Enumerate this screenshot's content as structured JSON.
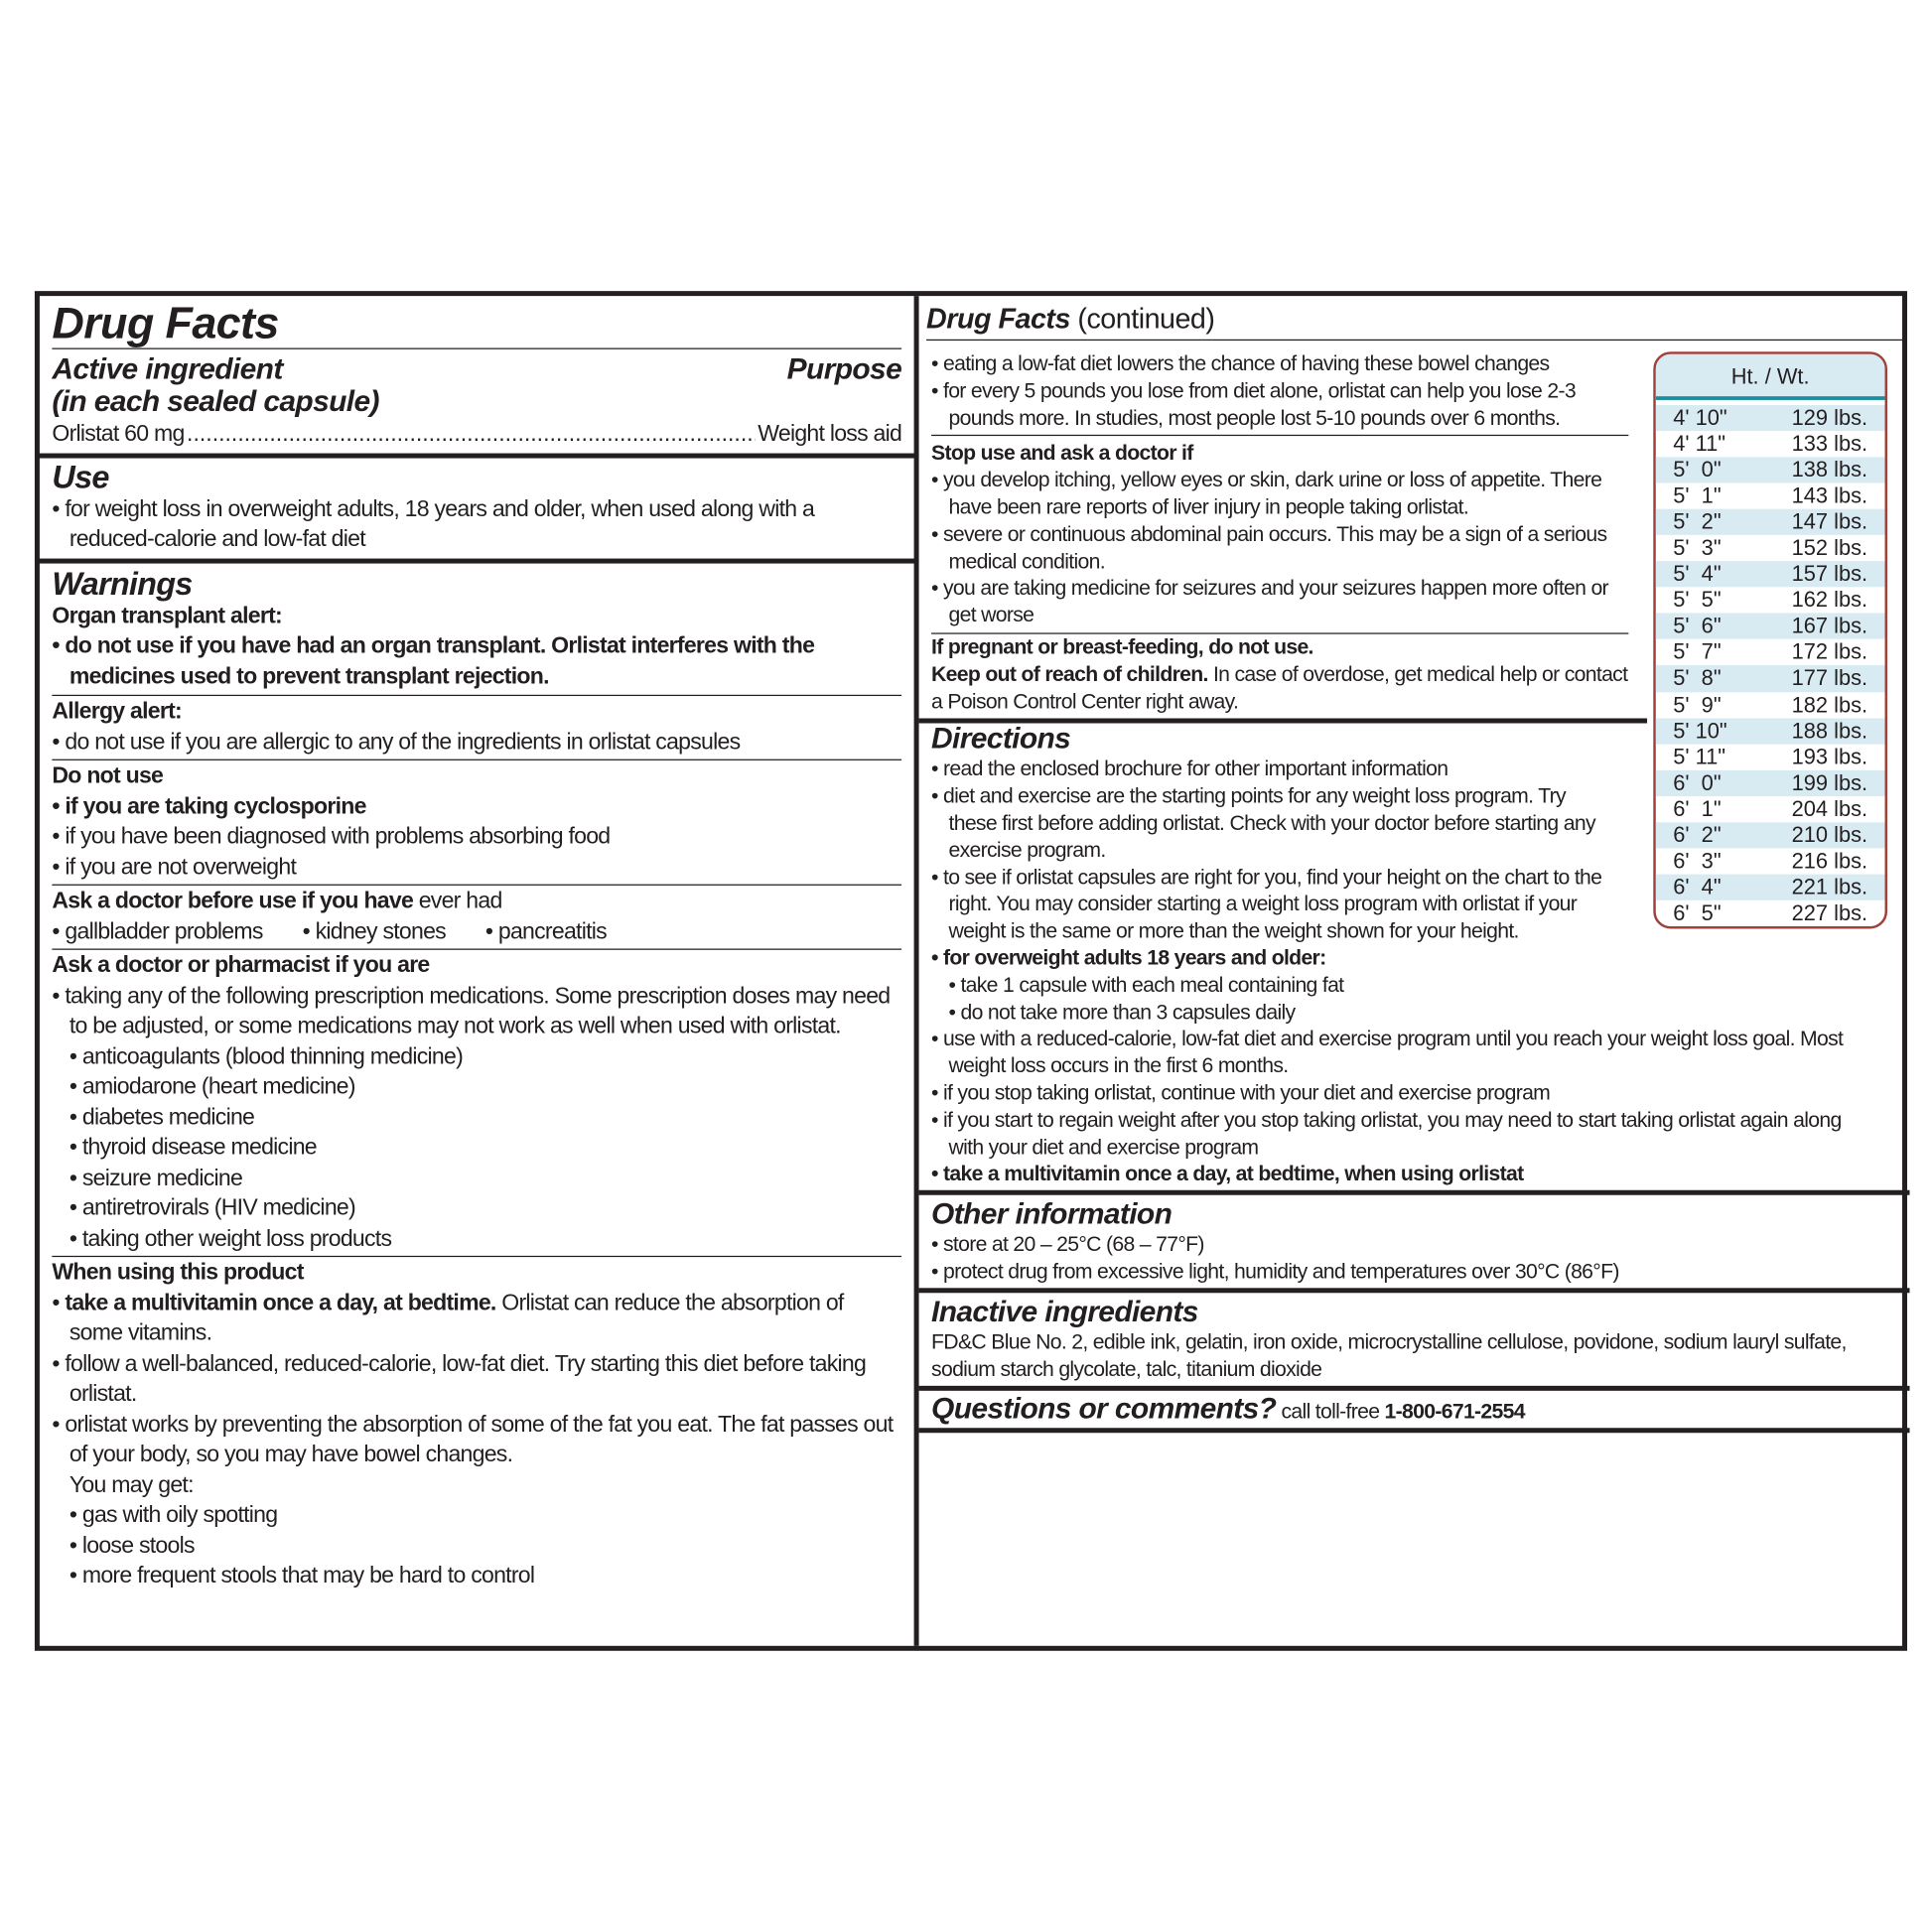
{
  "left": {
    "title": "Drug Facts",
    "active_heading": "Active ingredient",
    "active_sub": "(in each sealed capsule)",
    "purpose_heading": "Purpose",
    "ingredient": "Orlistat 60 mg",
    "purpose": "Weight loss aid",
    "use_heading": "Use",
    "use_items": [
      "for weight loss in overweight adults, 18 years and older, when used along with a reduced-calorie and low-fat diet"
    ],
    "warnings_heading": "Warnings",
    "organ_heading": "Organ transplant alert:",
    "organ_items": [
      "do not use if you have had an organ transplant. Orlistat interferes with the medicines used to prevent transplant rejection."
    ],
    "allergy_heading": "Allergy alert:",
    "allergy_items": [
      "do not use if you are allergic to any of the ingredients in orlistat capsules"
    ],
    "donot_heading": "Do not use",
    "donot_items": [
      "if you are taking cyclosporine",
      "if you have been diagnosed with problems absorbing food",
      "if you are not overweight"
    ],
    "askdoc_heading": "Ask a doctor before use if you have",
    "askdoc_heading_rest": " ever had",
    "askdoc_items": [
      "gallbladder problems",
      "kidney stones",
      "pancreatitis"
    ],
    "askpharm_heading": "Ask a doctor or pharmacist if you are",
    "askpharm_item": "taking any of the following prescription medications. Some prescription doses may need to be adjusted, or some medications may not work as well when used with orlistat.",
    "askpharm_sub": [
      "anticoagulants (blood thinning medicine)",
      "amiodarone (heart medicine)",
      "diabetes medicine",
      "thyroid disease medicine",
      "seizure medicine",
      "antiretrovirals (HIV medicine)",
      "taking other weight loss products"
    ],
    "when_heading": "When using this product",
    "when_1_bold": "take a multivitamin once a day, at bedtime.",
    "when_1_rest": " Orlistat can reduce the absorption of some vitamins.",
    "when_2": "follow a well-balanced, reduced-calorie, low-fat diet. Try starting this diet before taking orlistat.",
    "when_3": "orlistat works by preventing the absorption of some of the fat you eat. The fat passes out of your body, so you may have bowel changes.",
    "when_3_may": "You may get:",
    "when_sub": [
      "gas with oily spotting",
      "loose stools",
      "more frequent stools that may be hard to control"
    ]
  },
  "right": {
    "title": "Drug Facts",
    "title_rest": " (continued)",
    "top_items": [
      "eating a low-fat diet lowers the chance of having these bowel changes",
      "for every 5 pounds you lose from diet alone, orlistat can help you lose 2-3 pounds more. In studies, most people lost 5-10 pounds over 6 months."
    ],
    "stop_heading": "Stop use and ask a doctor if",
    "stop_items": [
      "you develop itching, yellow eyes or skin, dark urine or loss of appetite. There have been rare reports of liver injury in people taking orlistat.",
      "severe or continuous abdominal pain occurs. This may be a sign of a serious medical condition.",
      "you are taking medicine for seizures and your seizures happen more often or get worse"
    ],
    "pregnant": "If pregnant or breast-feeding, do not use.",
    "keep_bold": "Keep out of reach of children.",
    "keep_rest": " In case of overdose, get medical help or contact a Poison Control Center right away.",
    "directions_heading": "Directions",
    "dir_1": "read the enclosed brochure for other important information",
    "dir_2": "diet and exercise are the starting points for any weight loss program. Try these first before adding orlistat. Check with your doctor before starting any exercise program.",
    "dir_3": "to see if orlistat capsules are right for you, find your height on the chart to the right. You may consider starting a weight loss program with orlistat if your weight is the same or more than the weight shown for your height.",
    "dir_4": "for overweight adults 18 years and older:",
    "dir_4_sub": [
      "take 1 capsule with each meal containing fat",
      "do not take more than 3 capsules daily"
    ],
    "dir_5": "use with a reduced-calorie, low-fat diet and exercise program until you reach your weight loss goal. Most weight loss occurs in the first 6 months.",
    "dir_6": "if you stop taking orlistat, continue with your diet and exercise program",
    "dir_7": "if you start to regain weight after you stop taking orlistat, you may need to start taking orlistat again along with your diet and exercise program",
    "dir_8": "take a multivitamin once a day, at bedtime, when using orlistat",
    "other_heading": "Other information",
    "other_items": [
      "store at 20 – 25°C (68 – 77°F)",
      "protect drug from excessive light, humidity and temperatures over 30°C (86°F)"
    ],
    "inactive_heading": "Inactive ingredients",
    "inactive_text": "FD&C Blue No. 2, edible ink, gelatin, iron oxide, microcrystalline cellulose, povidone, sodium lauryl sulfate, sodium starch glycolate, talc, titanium dioxide",
    "questions_heading": "Questions or comments?",
    "questions_rest": " call toll-free ",
    "phone": "1-800-671-2554"
  },
  "chart": {
    "header": "Ht. / Wt.",
    "rows": [
      [
        "4' 10\"",
        "129 lbs."
      ],
      [
        "4' 11\"",
        "133 lbs."
      ],
      [
        "5'  0\"",
        "138 lbs."
      ],
      [
        "5'  1\"",
        "143 lbs."
      ],
      [
        "5'  2\"",
        "147 lbs."
      ],
      [
        "5'  3\"",
        "152 lbs."
      ],
      [
        "5'  4\"",
        "157 lbs."
      ],
      [
        "5'  5\"",
        "162 lbs."
      ],
      [
        "5'  6\"",
        "167 lbs."
      ],
      [
        "5'  7\"",
        "172 lbs."
      ],
      [
        "5'  8\"",
        "177 lbs."
      ],
      [
        "5'  9\"",
        "182 lbs."
      ],
      [
        "5' 10\"",
        "188 lbs."
      ],
      [
        "5' 11\"",
        "193 lbs."
      ],
      [
        "6'  0\"",
        "199 lbs."
      ],
      [
        "6'  1\"",
        "204 lbs."
      ],
      [
        "6'  2\"",
        "210 lbs."
      ],
      [
        "6'  3\"",
        "216 lbs."
      ],
      [
        "6'  4\"",
        "221 lbs."
      ],
      [
        "6'  5\"",
        "227 lbs."
      ]
    ],
    "border_color": "#a0413c",
    "stripe_color": "#d9ebf2",
    "rule_color": "#1a8fa0"
  }
}
